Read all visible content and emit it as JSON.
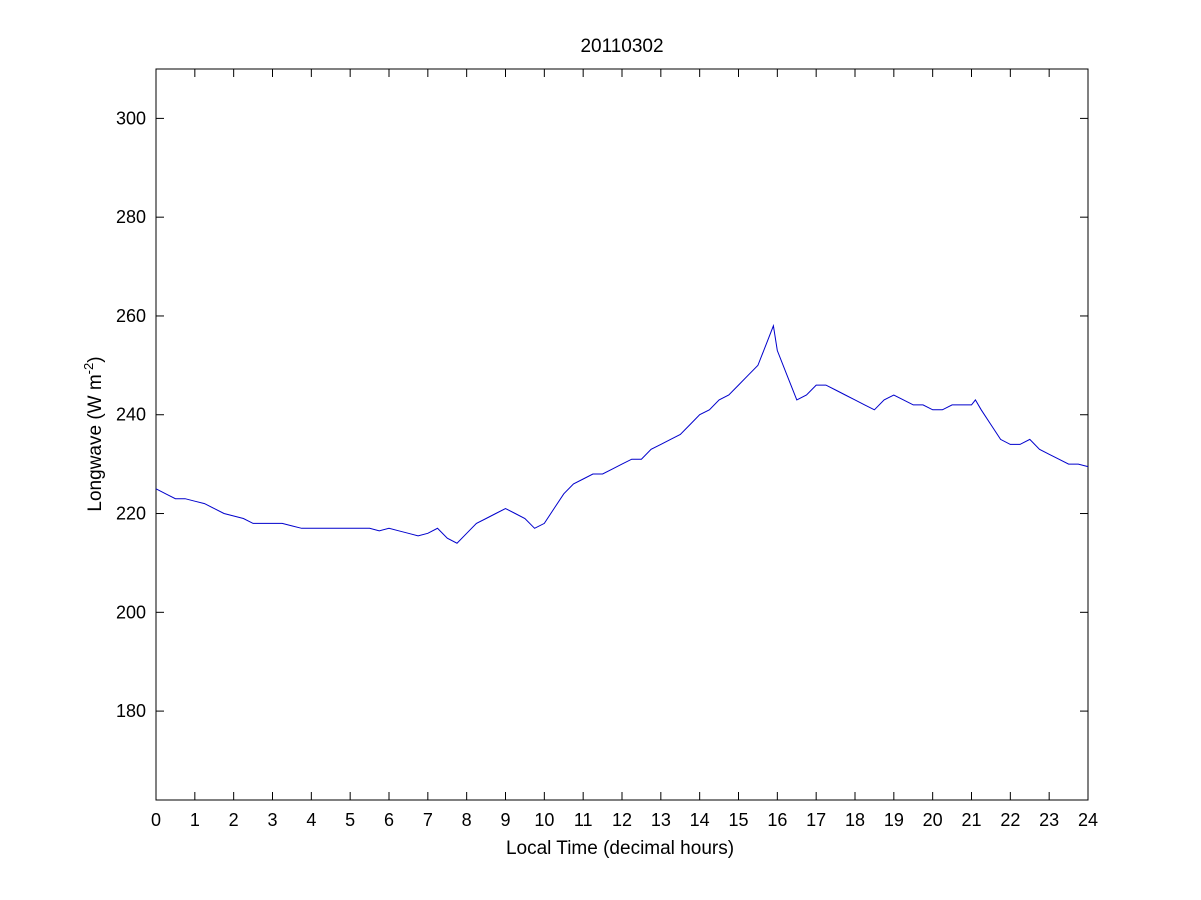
{
  "chart_data": {
    "type": "line",
    "title": "20110302",
    "xlabel": "Local Time (decimal hours)",
    "ylabel": "Longwave (W m",
    "ylabel_exponent": "-2",
    "ylabel_close": ")",
    "xlim": [
      0,
      24
    ],
    "ylim": [
      162,
      310
    ],
    "x_ticks": [
      0,
      1,
      2,
      3,
      4,
      5,
      6,
      7,
      8,
      9,
      10,
      11,
      12,
      13,
      14,
      15,
      16,
      17,
      18,
      19,
      20,
      21,
      22,
      23,
      24
    ],
    "y_ticks": [
      180,
      200,
      220,
      240,
      260,
      280,
      300
    ],
    "grid": false,
    "line_color": "#0000cc",
    "series": [
      {
        "x": [
          0,
          0.25,
          0.5,
          0.75,
          1,
          1.25,
          1.5,
          1.75,
          2,
          2.25,
          2.5,
          2.75,
          3,
          3.25,
          3.5,
          3.75,
          4,
          4.25,
          4.5,
          4.75,
          5,
          5.25,
          5.5,
          5.75,
          6,
          6.25,
          6.5,
          6.75,
          7,
          7.25,
          7.5,
          7.75,
          8,
          8.25,
          8.5,
          8.75,
          9,
          9.25,
          9.5,
          9.75,
          10,
          10.25,
          10.5,
          10.75,
          11,
          11.25,
          11.5,
          11.75,
          12,
          12.25,
          12.5,
          12.75,
          13,
          13.25,
          13.5,
          13.75,
          14,
          14.25,
          14.5,
          14.75,
          15,
          15.25,
          15.5,
          15.75,
          15.9,
          16,
          16.25,
          16.5,
          16.75,
          17,
          17.25,
          17.5,
          17.75,
          18,
          18.25,
          18.5,
          18.75,
          19,
          19.25,
          19.5,
          19.75,
          20,
          20.25,
          20.5,
          20.75,
          21,
          21.1,
          21.25,
          21.5,
          21.75,
          22,
          22.25,
          22.5,
          22.75,
          23,
          23.25,
          23.5,
          23.75,
          24
        ],
        "y": [
          225,
          224,
          223,
          223,
          222.5,
          222,
          221,
          220,
          219.5,
          219,
          218,
          218,
          218,
          218,
          217.5,
          217,
          217,
          217,
          217,
          217,
          217,
          217,
          217,
          216.5,
          217,
          216.5,
          216,
          215.5,
          216,
          217,
          215,
          214,
          216,
          218,
          219,
          220,
          221,
          220,
          219,
          217,
          218,
          221,
          224,
          226,
          227,
          228,
          228,
          229,
          230,
          231,
          231,
          233,
          234,
          235,
          236,
          238,
          240,
          241,
          243,
          244,
          246,
          248,
          250,
          255,
          258,
          253,
          248,
          243,
          244,
          246,
          246,
          245,
          244,
          243,
          242,
          241,
          243,
          244,
          243,
          242,
          242,
          241,
          241,
          242,
          242,
          242,
          243,
          241,
          238,
          235,
          234,
          234,
          235,
          233,
          232,
          231,
          230,
          230,
          229.5
        ]
      }
    ]
  }
}
